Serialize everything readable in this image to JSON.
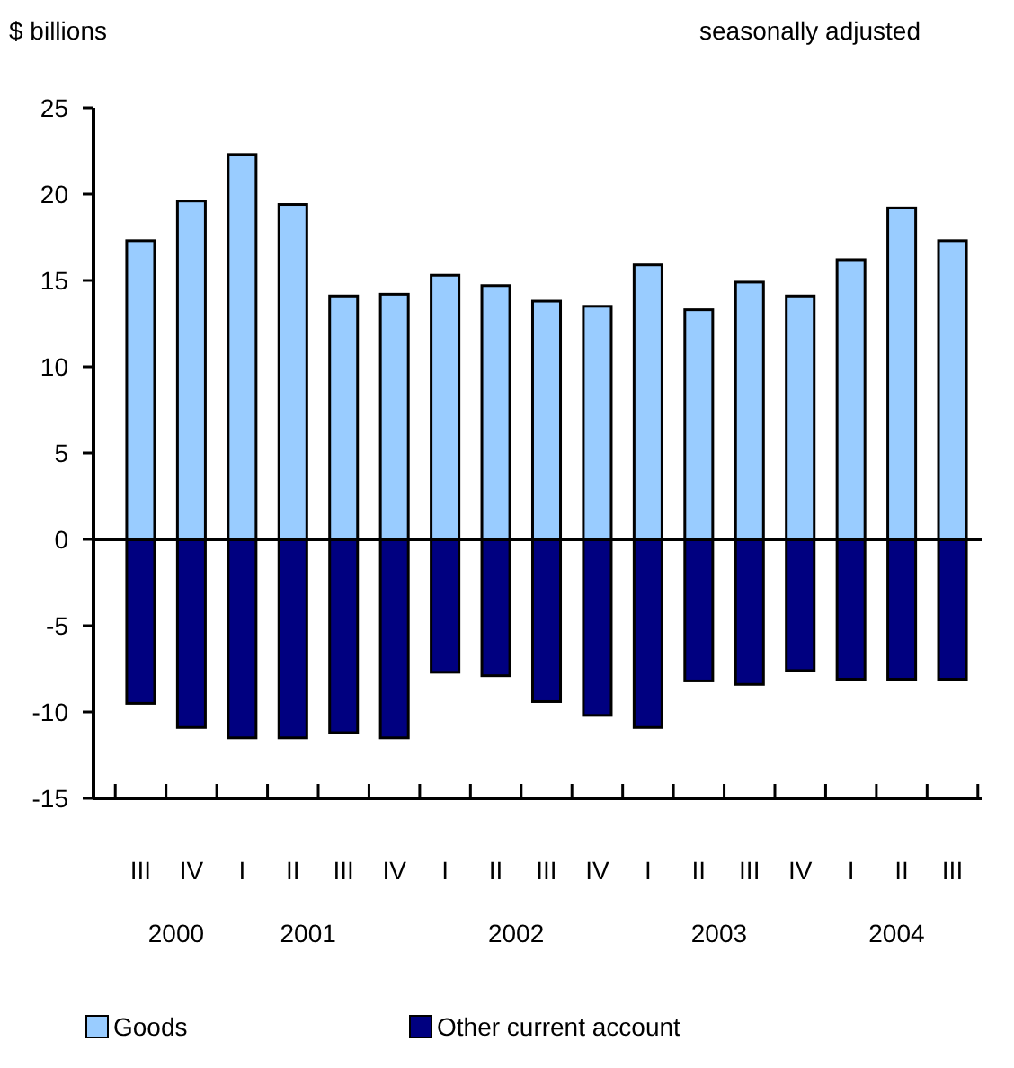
{
  "chart_data": {
    "type": "bar",
    "stacked": true,
    "ylabel": "$ billions",
    "subtitle": "seasonally adjusted",
    "categories": [
      "III",
      "IV",
      "I",
      "II",
      "III",
      "IV",
      "I",
      "II",
      "III",
      "IV",
      "I",
      "II",
      "III",
      "IV",
      "I",
      "II",
      "III"
    ],
    "series": [
      {
        "name": "Goods",
        "color": "#99ccff",
        "values": [
          17.3,
          19.6,
          22.3,
          19.4,
          14.1,
          14.2,
          15.3,
          14.7,
          13.8,
          13.5,
          15.9,
          13.3,
          14.9,
          14.1,
          16.2,
          19.2,
          17.3
        ]
      },
      {
        "name": "Other current account",
        "color": "#000080",
        "values": [
          -9.5,
          -10.9,
          -11.5,
          -11.5,
          -11.2,
          -11.5,
          -7.7,
          -7.9,
          -9.4,
          -10.2,
          -10.9,
          -8.2,
          -8.4,
          -7.6,
          -8.1,
          -8.1,
          -8.1
        ]
      }
    ],
    "annotations": [
      "2000",
      "2001",
      "2002",
      "2003",
      "2004"
    ],
    "ylim": [
      -15,
      25
    ],
    "yticks": [
      -15,
      -10,
      -5,
      0,
      5,
      10,
      15,
      20,
      25
    ],
    "legend": "bottom"
  }
}
